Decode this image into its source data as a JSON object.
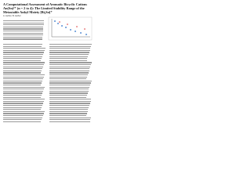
{
  "header": {
    "title": "A Computational Assessment of Aromatic Bicyclic Cations An(Sn)²⁺ (n = 2 to 4): The Limited Stability Range of the Metastable Ankyl Moiety [Bi₃Sn]⁺",
    "authors": "A. Author, B. Author"
  }
}
